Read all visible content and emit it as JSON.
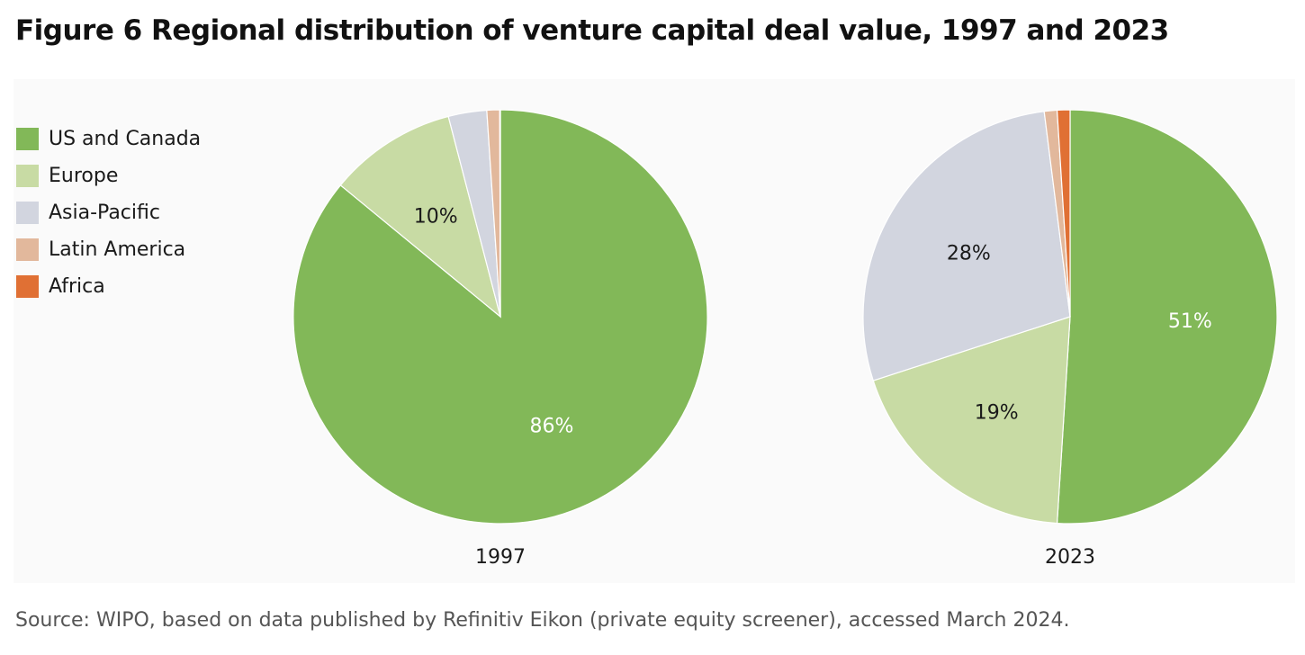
{
  "title": "Figure 6 Regional distribution of venture capital deal value, 1997 and 2023",
  "source": "Source: WIPO, based on data published by Refinitiv Eikon (private equity screener), accessed March 2024.",
  "legend": [
    {
      "label": "US and Canada",
      "color": "#82b858"
    },
    {
      "label": "Europe",
      "color": "#c8dba4"
    },
    {
      "label": "Asia-Pacific",
      "color": "#d2d5df"
    },
    {
      "label": "Latin America",
      "color": "#e2b89c"
    },
    {
      "label": "Africa",
      "color": "#e07034"
    }
  ],
  "chart_data": [
    {
      "type": "pie",
      "title": "1997",
      "slices": [
        {
          "name": "US and Canada",
          "value": 86,
          "label": "86%",
          "color": "#82b858",
          "label_color": "#ffffff"
        },
        {
          "name": "Europe",
          "value": 10,
          "label": "10%",
          "color": "#c8dba4",
          "label_color": "#1a1a1a"
        },
        {
          "name": "Asia-Pacific",
          "value": 3,
          "label": "",
          "color": "#d2d5df",
          "label_color": "#1a1a1a"
        },
        {
          "name": "Latin America",
          "value": 1,
          "label": "",
          "color": "#e2b89c",
          "label_color": "#1a1a1a"
        },
        {
          "name": "Africa",
          "value": 0.05,
          "label": "",
          "color": "#e07034",
          "label_color": "#1a1a1a"
        }
      ]
    },
    {
      "type": "pie",
      "title": "2023",
      "slices": [
        {
          "name": "US and Canada",
          "value": 51,
          "label": "51%",
          "color": "#82b858",
          "label_color": "#ffffff"
        },
        {
          "name": "Europe",
          "value": 19,
          "label": "19%",
          "color": "#c8dba4",
          "label_color": "#1a1a1a"
        },
        {
          "name": "Asia-Pacific",
          "value": 28,
          "label": "28%",
          "color": "#d2d5df",
          "label_color": "#1a1a1a"
        },
        {
          "name": "Latin America",
          "value": 1,
          "label": "",
          "color": "#e2b89c",
          "label_color": "#1a1a1a"
        },
        {
          "name": "Africa",
          "value": 1,
          "label": "",
          "color": "#e07034",
          "label_color": "#1a1a1a"
        }
      ]
    }
  ]
}
